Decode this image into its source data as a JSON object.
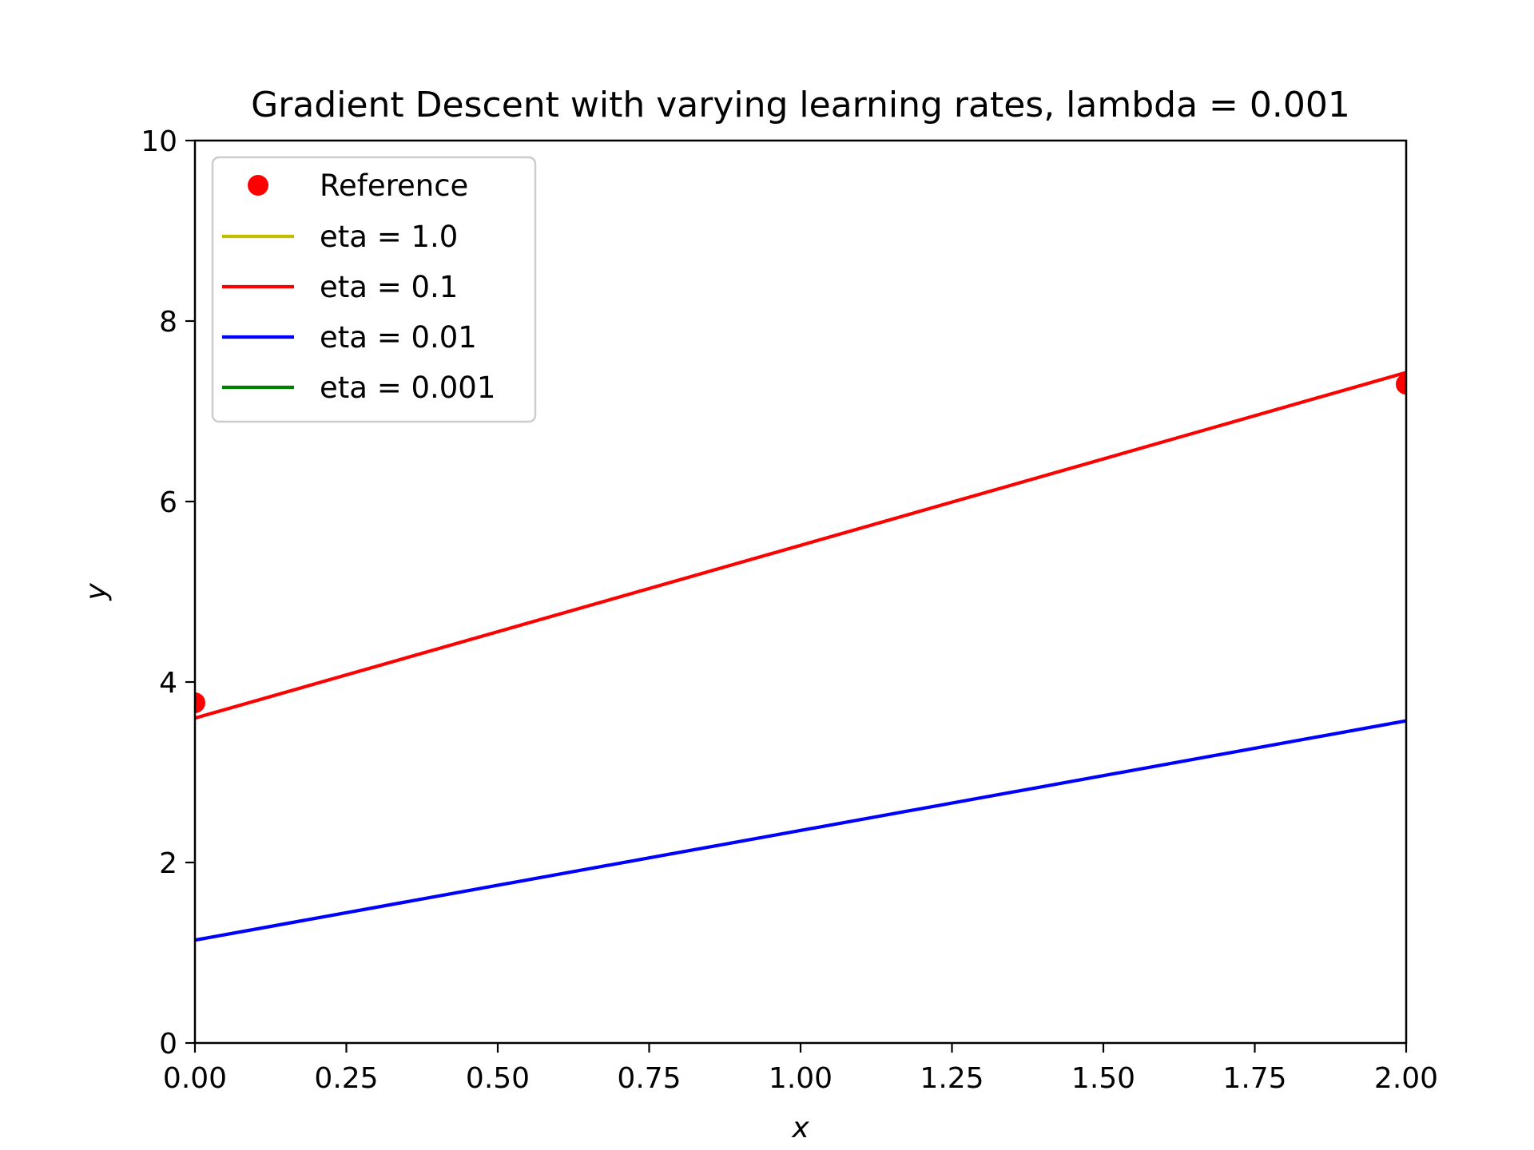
{
  "chart_data": {
    "type": "line",
    "title": "Gradient Descent with varying learning rates, lambda = 0.001",
    "xlabel": "x",
    "ylabel": "y",
    "xlim": [
      0,
      2
    ],
    "ylim": [
      0,
      10
    ],
    "xticks": [
      "0.00",
      "0.25",
      "0.50",
      "0.75",
      "1.00",
      "1.25",
      "1.50",
      "1.75",
      "2.00"
    ],
    "yticks": [
      "0",
      "2",
      "4",
      "6",
      "8",
      "10"
    ],
    "grid": false,
    "legend_position": "upper-left",
    "reference": {
      "name": "Reference",
      "color": "#ff0000",
      "marker": "circle",
      "x": [
        0.0,
        2.0
      ],
      "y": [
        3.77,
        7.3
      ]
    },
    "series": [
      {
        "name": "eta = 1.0",
        "color": "#bfbf00",
        "x": [],
        "y": []
      },
      {
        "name": "eta = 0.1",
        "color": "#ff0000",
        "x": [
          0.0,
          2.0
        ],
        "y": [
          3.6,
          7.43
        ]
      },
      {
        "name": "eta = 0.01",
        "color": "#0000ff",
        "x": [
          0.0,
          2.0
        ],
        "y": [
          1.14,
          3.57
        ]
      },
      {
        "name": "eta = 0.001",
        "color": "#007f00",
        "x": [],
        "y": []
      }
    ]
  }
}
